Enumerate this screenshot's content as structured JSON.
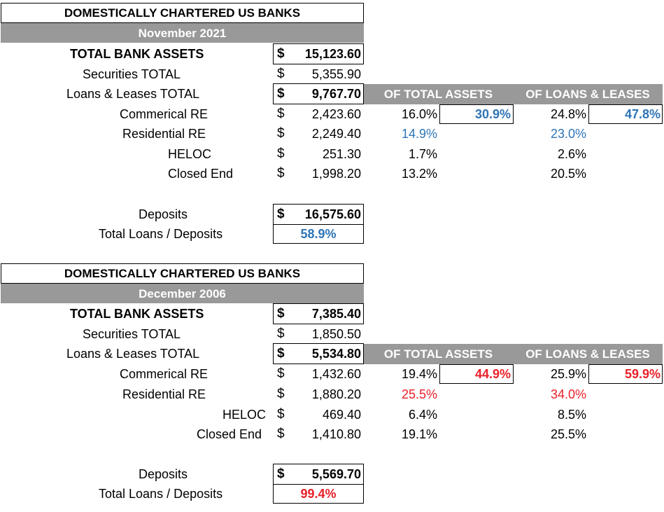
{
  "sections": [
    {
      "title": "DOMESTICALLY CHARTERED US BANKS",
      "period": "November 2021",
      "total_assets": {
        "label": "TOTAL BANK ASSETS",
        "cur": "$",
        "value": "15,123.60"
      },
      "securities": {
        "label": "Securities TOTAL",
        "cur": "$",
        "value": "5,355.90"
      },
      "loans": {
        "label": "Loans & Leases TOTAL",
        "cur": "$",
        "value": "9,767.70"
      },
      "hdr_assets": "OF TOTAL ASSETS",
      "hdr_loans": "OF LOANS & LEASES",
      "cre": {
        "label": "Commerical RE",
        "cur": "$",
        "value": "2,423.60",
        "pct_assets": "16.0%",
        "sum_assets": "30.9%",
        "pct_loans": "24.8%",
        "sum_loans": "47.8%"
      },
      "res": {
        "label": "Residential RE",
        "cur": "$",
        "value": "2,249.40",
        "pct_assets": "14.9%",
        "pct_loans": "23.0%"
      },
      "heloc": {
        "label": "HELOC",
        "cur": "$",
        "value": "251.30",
        "pct_assets": "1.7%",
        "pct_loans": "2.6%"
      },
      "closed": {
        "label": "Closed End",
        "cur": "$",
        "value": "1,998.20",
        "pct_assets": "13.2%",
        "pct_loans": "20.5%"
      },
      "deposits": {
        "label": "Deposits",
        "cur": "$",
        "value": "16,575.60"
      },
      "ratio": {
        "label": "Total Loans / Deposits",
        "value": "58.9%"
      },
      "accent": "#2e75b6"
    },
    {
      "title": "DOMESTICALLY CHARTERED US BANKS",
      "period": "December 2006",
      "total_assets": {
        "label": "TOTAL BANK ASSETS",
        "cur": "$",
        "value": "7,385.40"
      },
      "securities": {
        "label": "Securities TOTAL",
        "cur": "$",
        "value": "1,850.50"
      },
      "loans": {
        "label": "Loans & Leases TOTAL",
        "cur": "$",
        "value": "5,534.80"
      },
      "hdr_assets": "OF TOTAL ASSETS",
      "hdr_loans": "OF LOANS & LEASES",
      "cre": {
        "label": "Commerical RE",
        "cur": "$",
        "value": "1,432.60",
        "pct_assets": "19.4%",
        "sum_assets": "44.9%",
        "pct_loans": "25.9%",
        "sum_loans": "59.9%"
      },
      "res": {
        "label": "Residential RE",
        "cur": "$",
        "value": "1,880.20",
        "pct_assets": "25.5%",
        "pct_loans": "34.0%"
      },
      "heloc": {
        "label": "HELOC",
        "cur": "$",
        "value": "469.40",
        "pct_assets": "6.4%",
        "pct_loans": "8.5%"
      },
      "closed": {
        "label": "Closed End",
        "cur": "$",
        "value": "1,410.80",
        "pct_assets": "19.1%",
        "pct_loans": "25.5%"
      },
      "deposits": {
        "label": "Deposits",
        "cur": "$",
        "value": "5,569.70"
      },
      "ratio": {
        "label": "Total Loans / Deposits",
        "value": "99.4%"
      },
      "accent": "#e8202a"
    }
  ]
}
